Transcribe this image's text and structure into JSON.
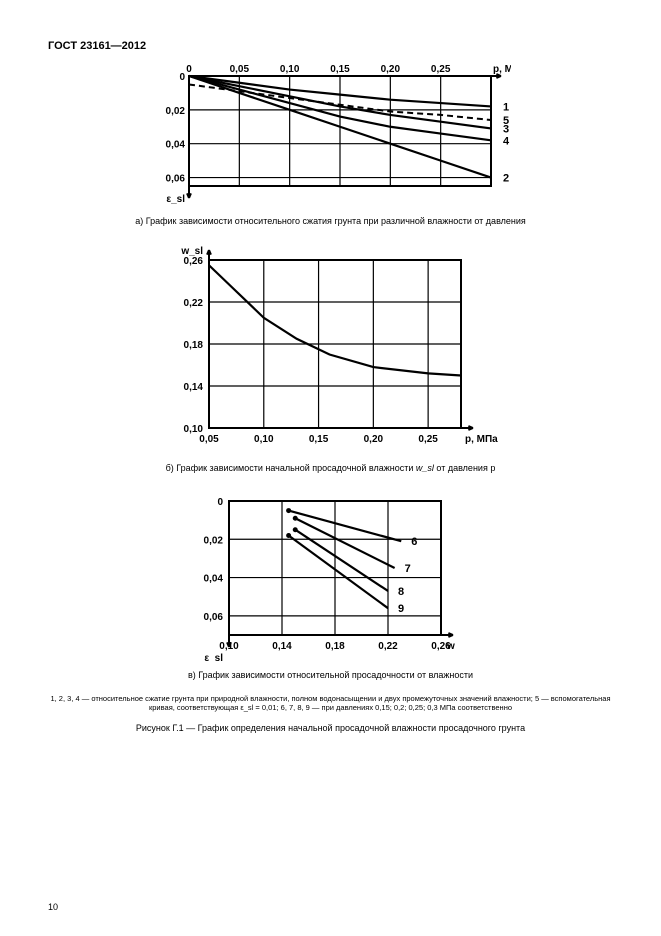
{
  "header": "ГОСТ 23161—2012",
  "page_number": "10",
  "chart_a": {
    "type": "line",
    "xlabel": "p, МПа",
    "ylabel": "ε_sl",
    "xticks": [
      "0",
      "0,05",
      "0,10",
      "0,15",
      "0,20",
      "0,25"
    ],
    "yticks": [
      "0",
      "0,02",
      "0,04",
      "0,06"
    ],
    "xlim": [
      0,
      0.3
    ],
    "ylim": [
      0,
      0.065
    ],
    "series": [
      {
        "label": "1",
        "points": [
          [
            0,
            0
          ],
          [
            0.05,
            0.004
          ],
          [
            0.1,
            0.008
          ],
          [
            0.15,
            0.011
          ],
          [
            0.2,
            0.014
          ],
          [
            0.25,
            0.016
          ],
          [
            0.3,
            0.018
          ]
        ]
      },
      {
        "label": "5",
        "dashed": true,
        "points": [
          [
            0,
            0.005
          ],
          [
            0.05,
            0.009
          ],
          [
            0.1,
            0.013
          ],
          [
            0.15,
            0.017
          ],
          [
            0.2,
            0.021
          ],
          [
            0.25,
            0.023
          ],
          [
            0.3,
            0.026
          ]
        ]
      },
      {
        "label": "3",
        "points": [
          [
            0,
            0
          ],
          [
            0.05,
            0.006
          ],
          [
            0.1,
            0.012
          ],
          [
            0.15,
            0.018
          ],
          [
            0.2,
            0.023
          ],
          [
            0.25,
            0.027
          ],
          [
            0.3,
            0.031
          ]
        ]
      },
      {
        "label": "4",
        "points": [
          [
            0,
            0
          ],
          [
            0.05,
            0.008
          ],
          [
            0.1,
            0.016
          ],
          [
            0.15,
            0.024
          ],
          [
            0.2,
            0.03
          ],
          [
            0.25,
            0.034
          ],
          [
            0.3,
            0.038
          ]
        ]
      },
      {
        "label": "2",
        "points": [
          [
            0,
            0
          ],
          [
            0.05,
            0.01
          ],
          [
            0.1,
            0.02
          ],
          [
            0.15,
            0.03
          ],
          [
            0.2,
            0.04
          ],
          [
            0.25,
            0.05
          ],
          [
            0.3,
            0.06
          ]
        ]
      }
    ],
    "label_order": [
      "1",
      "5",
      "3",
      "4",
      "2"
    ],
    "caption": "а)  График зависимости относительного сжатия грунта при различной влажности от давления"
  },
  "chart_b": {
    "type": "line",
    "xlabel": "p, МПа",
    "ylabel": "w_sl",
    "xticks": [
      "0,05",
      "0,10",
      "0,15",
      "0,20",
      "0,25"
    ],
    "yticks": [
      "0,26",
      "0,22",
      "0,18",
      "0,14",
      "0,10"
    ],
    "xlim": [
      0.05,
      0.28
    ],
    "ylim": [
      0.1,
      0.26
    ],
    "series": [
      {
        "points": [
          [
            0.05,
            0.255
          ],
          [
            0.07,
            0.235
          ],
          [
            0.1,
            0.205
          ],
          [
            0.13,
            0.185
          ],
          [
            0.16,
            0.17
          ],
          [
            0.2,
            0.158
          ],
          [
            0.25,
            0.152
          ],
          [
            0.28,
            0.15
          ]
        ]
      }
    ],
    "caption_pre": "б)  График зависимости начальной просадочной влажности ",
    "caption_var": "w_sl",
    "caption_post": " от давления p"
  },
  "chart_c": {
    "type": "line",
    "xlabel": "w",
    "ylabel": "ε_sl",
    "xticks": [
      "0,10",
      "0,14",
      "0,18",
      "0,22",
      "0,26"
    ],
    "yticks": [
      "0",
      "0,02",
      "0,04",
      "0,06"
    ],
    "xlim": [
      0.1,
      0.26
    ],
    "ylim": [
      0,
      0.07
    ],
    "series": [
      {
        "label": "6",
        "points": [
          [
            0.145,
            0.005
          ],
          [
            0.23,
            0.021
          ]
        ]
      },
      {
        "label": "7",
        "points": [
          [
            0.15,
            0.009
          ],
          [
            0.225,
            0.035
          ]
        ]
      },
      {
        "label": "8",
        "points": [
          [
            0.15,
            0.015
          ],
          [
            0.22,
            0.047
          ]
        ]
      },
      {
        "label": "9",
        "points": [
          [
            0.145,
            0.018
          ],
          [
            0.22,
            0.056
          ]
        ]
      }
    ],
    "caption": "в)  График зависимости относительной просадочности от влажности"
  },
  "legend_text": "1, 2, 3, 4 — относительное сжатие грунта при природной влажности, полном водонасыщении и двух промежуточных значений влажности; 5 — вспомогательная кривая, соответствующая ε_sl = 0,01; 6, 7, 8, 9 — при давлениях 0,15; 0,2; 0,25; 0,3 МПа соответственно",
  "figure_label": "Рисунок  Г.1 — График определения начальной просадочной влажности просадочного грунта"
}
